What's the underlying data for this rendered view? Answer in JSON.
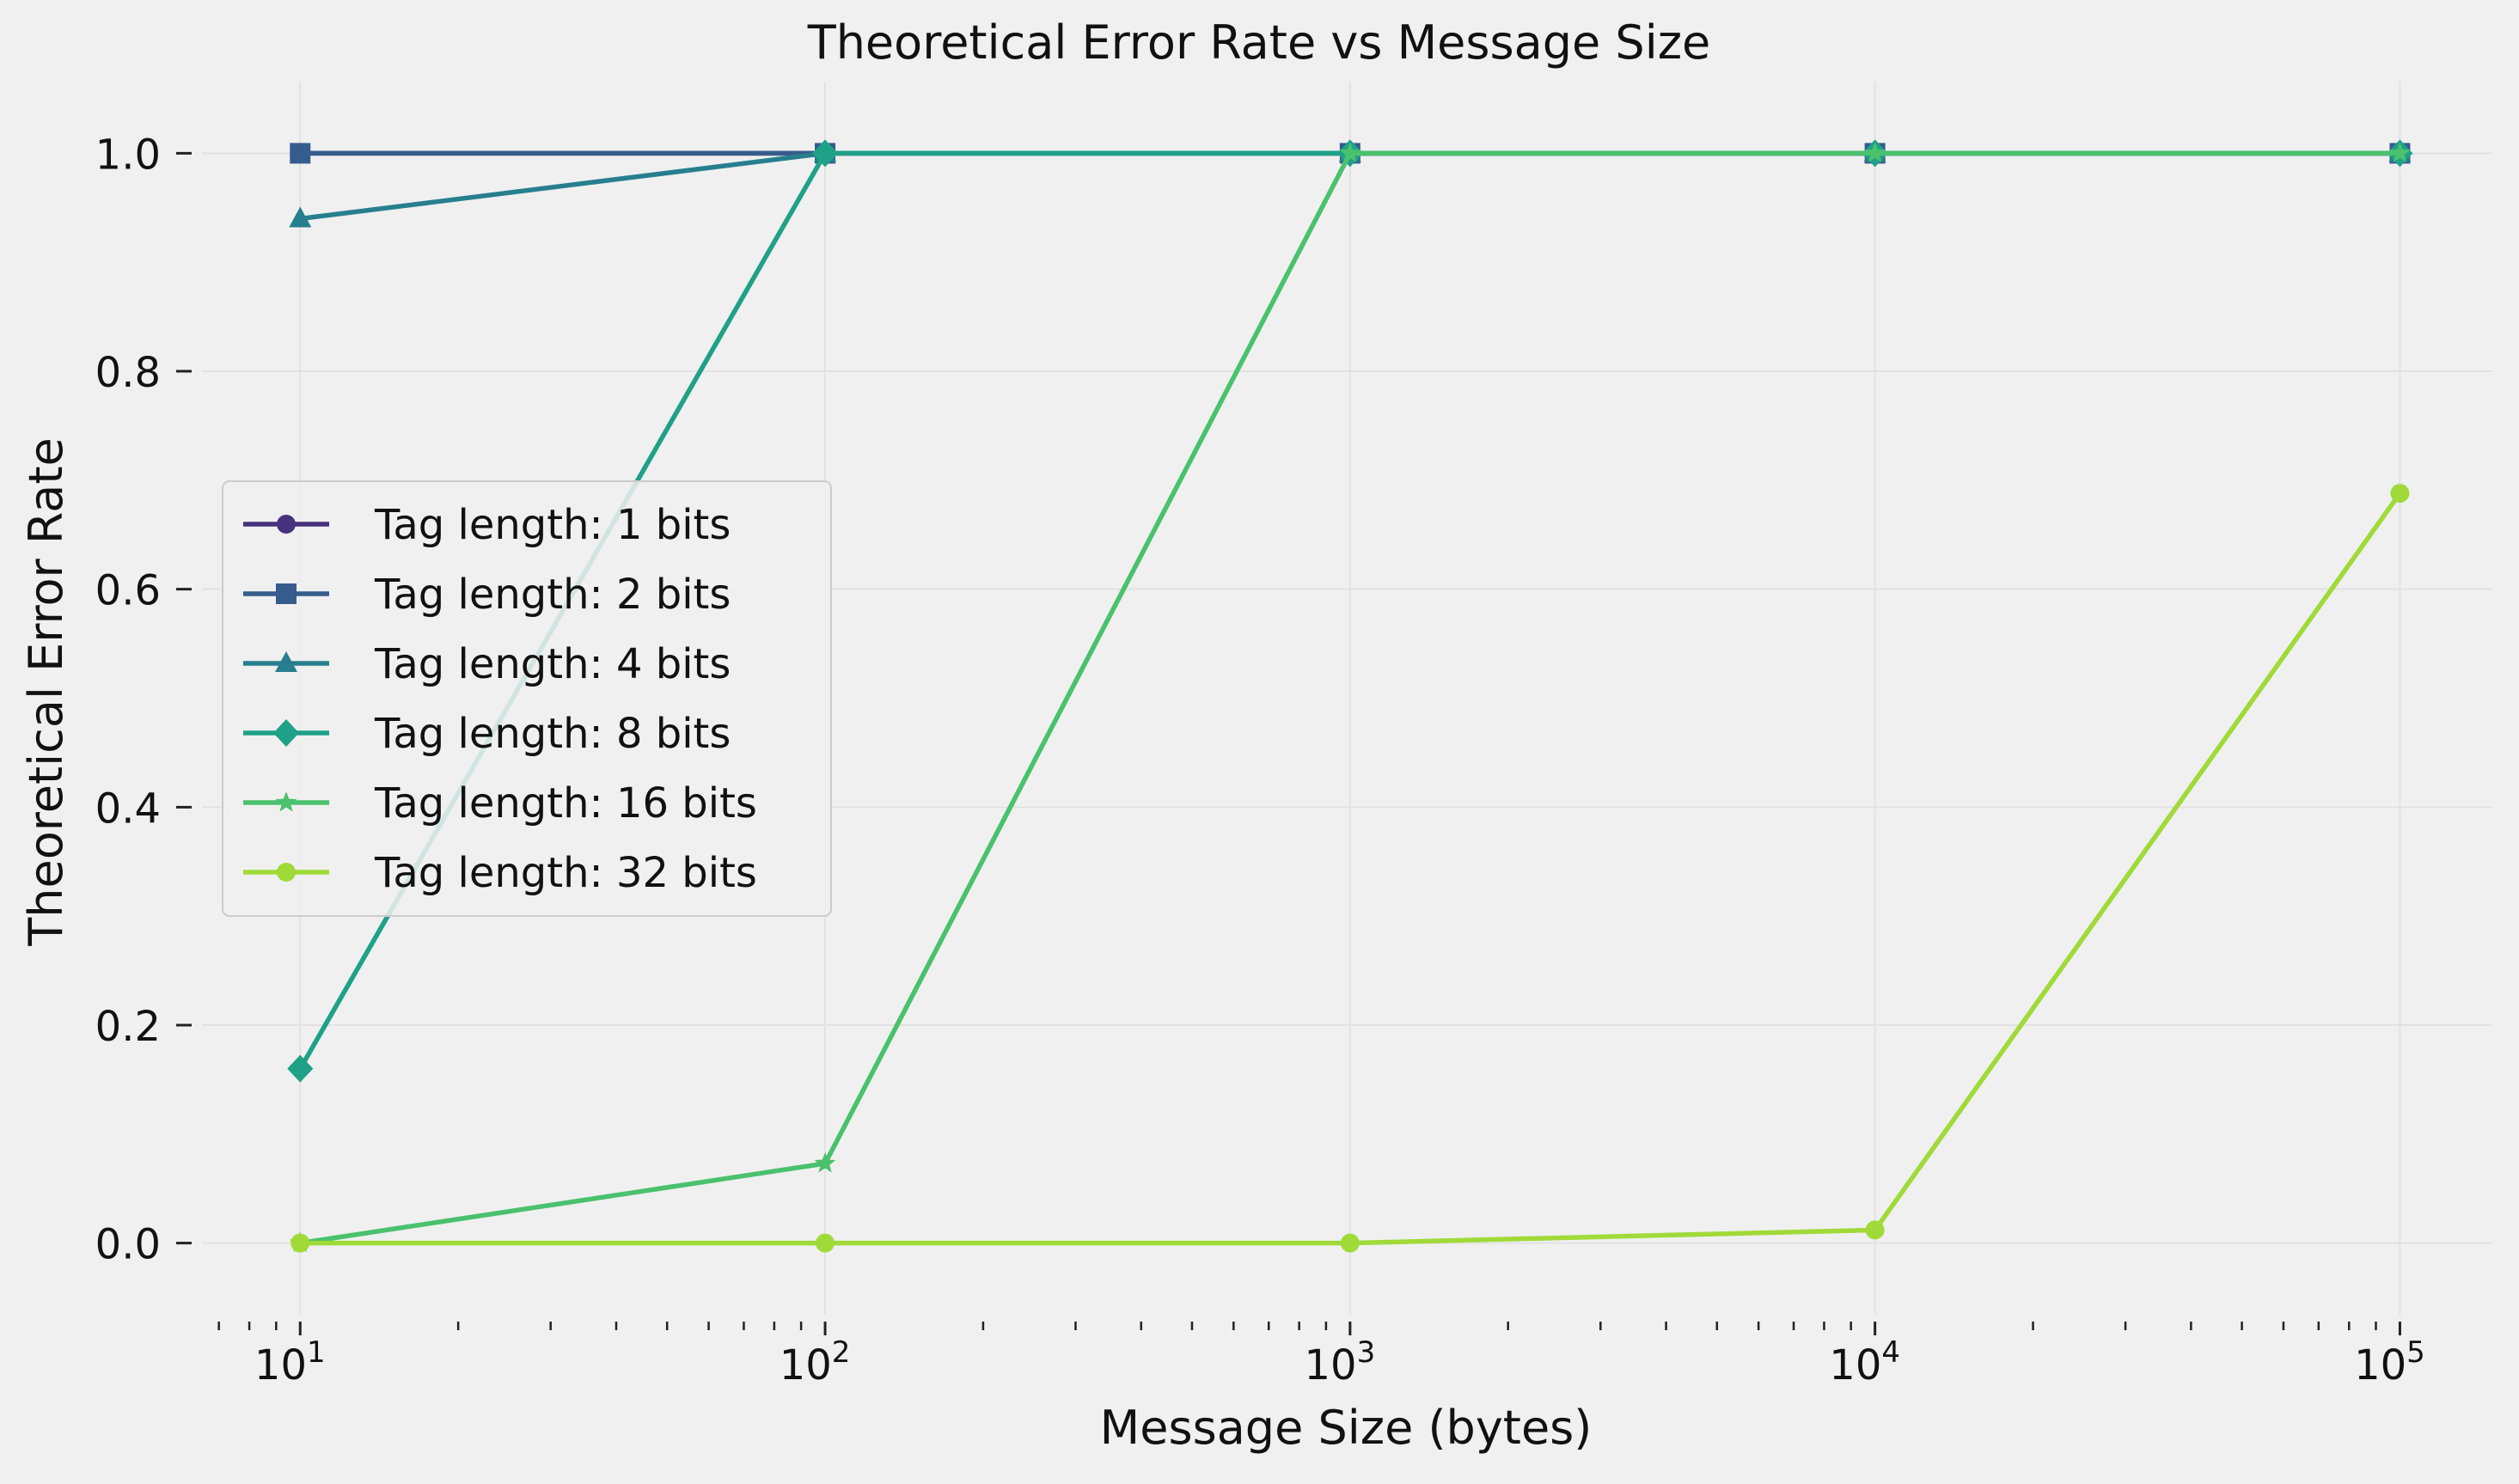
{
  "chart_data": {
    "type": "line",
    "title": "Theoretical Error Rate vs Message Size",
    "xlabel": "Message Size (bytes)",
    "ylabel": "Theoretical Error Rate",
    "xscale": "log",
    "xlim": [
      6.5,
      150000
    ],
    "ylim": [
      -0.05,
      1.05
    ],
    "grid": true,
    "legend_position": "center-left",
    "x": [
      10,
      100,
      1000,
      10000,
      100000
    ],
    "x_ticks": [
      {
        "base": "10",
        "exp": "1"
      },
      {
        "base": "10",
        "exp": "2"
      },
      {
        "base": "10",
        "exp": "3"
      },
      {
        "base": "10",
        "exp": "4"
      },
      {
        "base": "10",
        "exp": "5"
      }
    ],
    "y_ticks": [
      "0.0",
      "0.2",
      "0.4",
      "0.6",
      "0.8",
      "1.0"
    ],
    "series": [
      {
        "name": "Tag length: 1 bits",
        "color": "#46327e",
        "marker": "circle",
        "values": [
          1.0,
          1.0,
          1.0,
          1.0,
          1.0
        ]
      },
      {
        "name": "Tag length: 2 bits",
        "color": "#365c8d",
        "marker": "square",
        "values": [
          1.0,
          1.0,
          1.0,
          1.0,
          1.0
        ]
      },
      {
        "name": "Tag length: 4 bits",
        "color": "#277f8e",
        "marker": "triangle",
        "values": [
          0.94,
          1.0,
          1.0,
          1.0,
          1.0
        ]
      },
      {
        "name": "Tag length: 8 bits",
        "color": "#1fa187",
        "marker": "diamond",
        "values": [
          0.16,
          1.0,
          1.0,
          1.0,
          1.0
        ]
      },
      {
        "name": "Tag length: 16 bits",
        "color": "#4ac16d",
        "marker": "star",
        "values": [
          0.0,
          0.073,
          1.0,
          1.0,
          1.0
        ]
      },
      {
        "name": "Tag length: 32 bits",
        "color": "#a0da39",
        "marker": "circle",
        "values": [
          0.0,
          0.0,
          0.0,
          0.012,
          0.688
        ]
      }
    ]
  }
}
